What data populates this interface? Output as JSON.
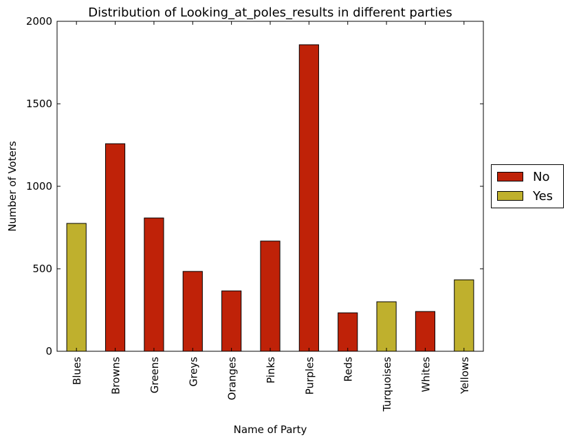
{
  "chart_data": {
    "type": "bar",
    "title": "Distribution of Looking_at_poles_results in different parties",
    "xlabel": "Name of Party",
    "ylabel": "Number of Voters",
    "ylim": [
      0,
      2000
    ],
    "yticks": [
      0,
      500,
      1000,
      1500,
      2000
    ],
    "categories": [
      "Blues",
      "Browns",
      "Greens",
      "Greys",
      "Oranges",
      "Pinks",
      "Purples",
      "Reds",
      "Turquoises",
      "Whites",
      "Yellows"
    ],
    "values": [
      775,
      1258,
      808,
      484,
      366,
      668,
      1858,
      233,
      300,
      241,
      433
    ],
    "result": [
      "Yes",
      "No",
      "No",
      "No",
      "No",
      "No",
      "No",
      "No",
      "Yes",
      "No",
      "Yes"
    ],
    "grid": false,
    "legend": {
      "placement": "right-center",
      "entries": [
        {
          "label": "No",
          "color": "#bf2208"
        },
        {
          "label": "Yes",
          "color": "#bfb02d"
        }
      ]
    }
  }
}
